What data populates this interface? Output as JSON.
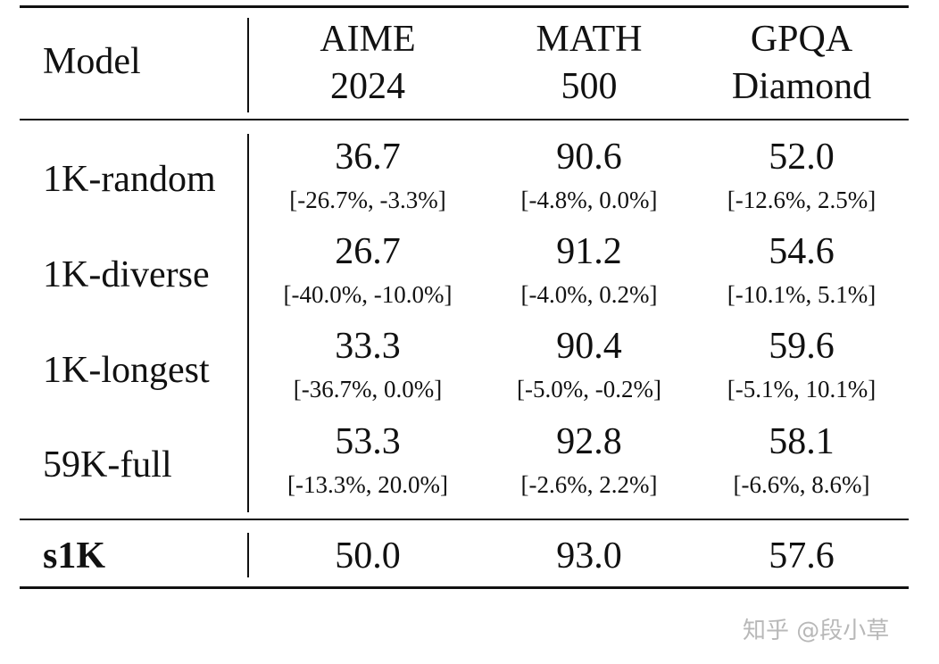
{
  "table": {
    "headers": {
      "model": "Model",
      "cols": [
        {
          "line1": "AIME",
          "line2": "2024"
        },
        {
          "line1": "MATH",
          "line2": "500"
        },
        {
          "line1": "GPQA",
          "line2": "Diamond"
        }
      ]
    },
    "rows": [
      {
        "label": "1K-random",
        "cells": [
          {
            "value": "36.7",
            "ci": "[-26.7%, -3.3%]"
          },
          {
            "value": "90.6",
            "ci": "[-4.8%, 0.0%]"
          },
          {
            "value": "52.0",
            "ci": "[-12.6%, 2.5%]"
          }
        ]
      },
      {
        "label": "1K-diverse",
        "cells": [
          {
            "value": "26.7",
            "ci": "[-40.0%, -10.0%]"
          },
          {
            "value": "91.2",
            "ci": "[-4.0%, 0.2%]"
          },
          {
            "value": "54.6",
            "ci": "[-10.1%, 5.1%]"
          }
        ]
      },
      {
        "label": "1K-longest",
        "cells": [
          {
            "value": "33.3",
            "ci": "[-36.7%, 0.0%]"
          },
          {
            "value": "90.4",
            "ci": "[-5.0%, -0.2%]"
          },
          {
            "value": "59.6",
            "ci": "[-5.1%, 10.1%]"
          }
        ]
      },
      {
        "label": "59K-full",
        "cells": [
          {
            "value": "53.3",
            "ci": "[-13.3%, 20.0%]"
          },
          {
            "value": "92.8",
            "ci": "[-2.6%, 2.2%]"
          },
          {
            "value": "58.1",
            "ci": "[-6.6%, 8.6%]"
          }
        ]
      }
    ],
    "final_row": {
      "label": "s1K",
      "values": [
        "50.0",
        "93.0",
        "57.6"
      ]
    }
  },
  "watermark": "知乎 @段小草"
}
